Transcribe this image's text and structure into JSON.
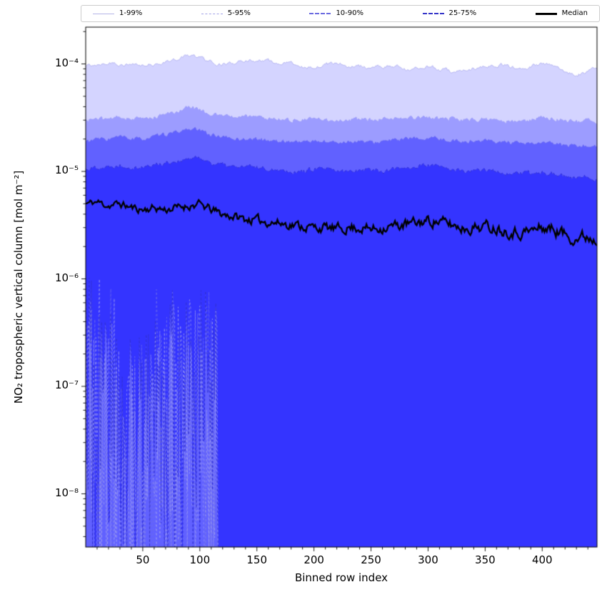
{
  "chart_data": {
    "type": "area",
    "title": "",
    "xlabel": "Binned row index",
    "ylabel": "NO₂ tropospheric vertical column [mol m⁻²]",
    "yscale": "log",
    "xlim": [
      0,
      448
    ],
    "ylim": [
      3.2e-09,
      0.00022
    ],
    "x_ticks": [
      50,
      100,
      150,
      200,
      250,
      300,
      350,
      400
    ],
    "y_ticks": [
      {
        "label": "10⁻⁴",
        "value": 0.0001
      },
      {
        "label": "10⁻⁵",
        "value": 1e-05
      },
      {
        "label": "10⁻⁶",
        "value": 1e-06
      },
      {
        "label": "10⁻⁷",
        "value": 1e-07
      },
      {
        "label": "10⁻⁸",
        "value": 1e-08
      }
    ],
    "legend": [
      {
        "label": "1-99%",
        "sample_style": "solid",
        "sample_width": 1,
        "sample_color": "#b4b4e6"
      },
      {
        "label": "5-95%",
        "sample_style": "dashed",
        "sample_width": 1,
        "sample_color": "#a0a0e6"
      },
      {
        "label": "10-90%",
        "sample_style": "dashed",
        "sample_width": 2,
        "sample_color": "#6a6ae0"
      },
      {
        "label": "25-75%",
        "sample_style": "dashed",
        "sample_width": 2,
        "sample_color": "#3434c8"
      },
      {
        "label": "Median",
        "sample_style": "solid",
        "sample_width": 3,
        "sample_color": "#000000"
      }
    ],
    "colors": {
      "band_rgb": "25,25,255",
      "band_alphas": [
        0.19,
        0.3,
        0.45,
        0.62
      ],
      "edge_colors": [
        "rgba(165,165,235,0.95)",
        "rgba(150,150,240,0.95)",
        "rgba(105,105,235,0.95)",
        "rgba(48,48,210,1)"
      ],
      "median": "#000000"
    },
    "series": {
      "x": [
        0,
        10,
        20,
        30,
        40,
        50,
        60,
        70,
        80,
        90,
        100,
        110,
        120,
        130,
        140,
        150,
        160,
        170,
        180,
        190,
        200,
        210,
        220,
        230,
        240,
        250,
        260,
        270,
        280,
        290,
        300,
        310,
        320,
        330,
        340,
        350,
        360,
        370,
        380,
        390,
        400,
        410,
        420,
        430,
        440,
        448
      ],
      "median": [
        5e-06,
        5.2e-06,
        4.8e-06,
        5e-06,
        4.6e-06,
        4.4e-06,
        4.6e-06,
        4.4e-06,
        4.6e-06,
        4.8e-06,
        4.9e-06,
        4.4e-06,
        4e-06,
        3.8e-06,
        3.6e-06,
        3.5e-06,
        3.4e-06,
        3.3e-06,
        3.2e-06,
        3.1e-06,
        3e-06,
        3e-06,
        2.9e-06,
        3e-06,
        3e-06,
        2.9e-06,
        3e-06,
        3.1e-06,
        3.2e-06,
        3.3e-06,
        3.5e-06,
        3.4e-06,
        3.2e-06,
        3e-06,
        3e-06,
        3.1e-06,
        3e-06,
        2.8e-06,
        2.7e-06,
        2.8e-06,
        3e-06,
        2.9e-06,
        2.6e-06,
        2.4e-06,
        2.5e-06,
        2.3e-06
      ],
      "p75": [
        1.05e-05,
        1.1e-05,
        1.1e-05,
        1.15e-05,
        1.1e-05,
        1.1e-05,
        1.15e-05,
        1.2e-05,
        1.25e-05,
        1.3e-05,
        1.35e-05,
        1.2e-05,
        1.15e-05,
        1.1e-05,
        1.1e-05,
        1.1e-05,
        1.05e-05,
        1.05e-05,
        1e-05,
        1e-05,
        1.05e-05,
        1.05e-05,
        1e-05,
        1e-05,
        1.05e-05,
        1.05e-05,
        1e-05,
        1.05e-05,
        1.1e-05,
        1.1e-05,
        1.15e-05,
        1.1e-05,
        1.05e-05,
        1e-05,
        1e-05,
        1.05e-05,
        1e-05,
        9.5e-06,
        9.5e-06,
        9.5e-06,
        1e-05,
        9.5e-06,
        9e-06,
        8.5e-06,
        9e-06,
        8.5e-06
      ],
      "p90": [
        1.9e-05,
        2e-05,
        2e-05,
        2.1e-05,
        2e-05,
        2e-05,
        2.1e-05,
        2.2e-05,
        2.3e-05,
        2.5e-05,
        2.4e-05,
        2.2e-05,
        2.1e-05,
        2e-05,
        2e-05,
        2e-05,
        1.95e-05,
        1.9e-05,
        1.9e-05,
        1.9e-05,
        1.9e-05,
        1.9e-05,
        1.85e-05,
        1.9e-05,
        1.9e-05,
        1.85e-05,
        1.9e-05,
        1.95e-05,
        2e-05,
        2e-05,
        2.05e-05,
        2e-05,
        1.95e-05,
        1.9e-05,
        1.9e-05,
        1.95e-05,
        1.9e-05,
        1.85e-05,
        1.8e-05,
        1.8e-05,
        1.85e-05,
        1.8e-05,
        1.75e-05,
        1.7e-05,
        1.75e-05,
        1.7e-05
      ],
      "p95": [
        3e-05,
        3.1e-05,
        3.1e-05,
        3.2e-05,
        3.1e-05,
        3.1e-05,
        3.2e-05,
        3.4e-05,
        3.6e-05,
        4e-05,
        3.8e-05,
        3.4e-05,
        3.3e-05,
        3.2e-05,
        3.3e-05,
        3.2e-05,
        3.1e-05,
        3.1e-05,
        3e-05,
        3e-05,
        3.1e-05,
        3e-05,
        3e-05,
        3e-05,
        3.1e-05,
        3e-05,
        3e-05,
        3.1e-05,
        3.1e-05,
        3.2e-05,
        3.2e-05,
        3.1e-05,
        3.1e-05,
        3e-05,
        3e-05,
        3.1e-05,
        3e-05,
        2.9e-05,
        2.9e-05,
        3e-05,
        3.2e-05,
        3.1e-05,
        3e-05,
        2.9e-05,
        3e-05,
        2.8e-05
      ],
      "p99": [
        9.5e-05,
        0.0001,
        0.000105,
        0.0001,
        9.8e-05,
        9.5e-05,
        0.0001,
        0.000105,
        0.00011,
        0.00012,
        0.000115,
        0.000105,
        0.0001,
        0.0001,
        0.000105,
        0.00011,
        0.000105,
        0.0001,
        0.0001,
        9.5e-05,
        9.5e-05,
        0.0001,
        0.0001,
        9.5e-05,
        9.5e-05,
        9e-05,
        9.5e-05,
        9.5e-05,
        9e-05,
        9e-05,
        9.5e-05,
        9e-05,
        8.5e-05,
        8.5e-05,
        9e-05,
        9.5e-05,
        0.0001,
        9.5e-05,
        9e-05,
        9.5e-05,
        0.0001,
        9.5e-05,
        8.5e-05,
        8e-05,
        8.5e-05,
        9e-05
      ]
    },
    "lower_bounds": {
      "p25": "below axis (< 3e-9) for rows > 115; noisy between ~1e-8 and ~1e-6 for rows 1-115",
      "p10": "below axis for rows > 115; noisy between ~1e-8 and ~8e-7 for rows 1-115",
      "p5": "below axis for rows > 115; noisy between ~1e-8 and ~1e-6 for rows 1-115",
      "p1": "below axis for rows > 115; noisy between ~1e-8 and ~7e-7 for rows 1-115"
    },
    "noise_region": {
      "x_start": 0,
      "x_end": 115,
      "low_min": 1e-08,
      "low_max": 1.05e-06,
      "quiet_span": [
        33,
        57
      ],
      "quiet_max": 3.2e-07
    }
  }
}
